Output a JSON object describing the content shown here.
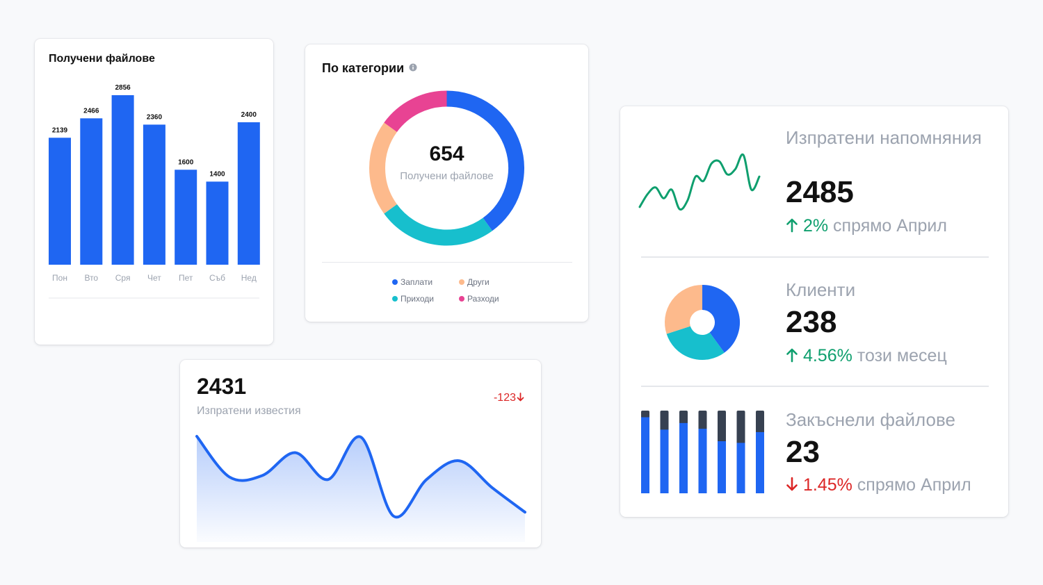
{
  "files_card": {
    "title": "Получени файлове",
    "chart_data": {
      "type": "bar",
      "categories": [
        "Пон",
        "Вто",
        "Сря",
        "Чет",
        "Пет",
        "Съб",
        "Нед"
      ],
      "values": [
        2139,
        2466,
        2856,
        2360,
        1600,
        1400,
        2400
      ],
      "color": "#1f66f2"
    }
  },
  "category_card": {
    "title": "По категории",
    "info_icon": "info-icon",
    "center_value": "654",
    "center_label": "Получени файлове",
    "chart_data": {
      "type": "pie",
      "categories": [
        "Заплати",
        "Приходи",
        "Други",
        "Разходи"
      ],
      "values": [
        40,
        25,
        20,
        15
      ],
      "colors": [
        "#1f66f2",
        "#17bfcd",
        "#fdba8c",
        "#e84393"
      ]
    },
    "legend": [
      {
        "label": "Заплати",
        "color": "#1f66f2"
      },
      {
        "label": "Други",
        "color": "#fdba8c"
      },
      {
        "label": "Приходи",
        "color": "#17bfcd"
      },
      {
        "label": "Разходи",
        "color": "#e84393"
      }
    ]
  },
  "notifications_card": {
    "value": "2431",
    "label": "Изпратени известия",
    "change": "-123",
    "change_icon": "arrow-down-icon",
    "chart_data": {
      "type": "area",
      "x": [
        0,
        1,
        2,
        3,
        4,
        5,
        6,
        7,
        8,
        9,
        10
      ],
      "values": [
        78,
        28,
        30,
        58,
        25,
        77,
        -20,
        25,
        48,
        15,
        -15
      ],
      "color": "#1f66f2"
    }
  },
  "kpi_card": {
    "reminders": {
      "label": "Изпратени напомняния",
      "value": "2485",
      "change_pct": "2%",
      "change_text": "спрямо Април",
      "direction": "up",
      "chart_data": {
        "type": "line",
        "values": [
          12,
          24,
          30,
          20,
          28,
          10,
          18,
          40,
          36,
          52,
          54,
          42,
          47,
          60,
          28,
          40
        ],
        "color": "#0f9f6e"
      }
    },
    "clients": {
      "label": "Клиенти",
      "value": "238",
      "change_pct": "4.56%",
      "change_text": "този месец",
      "direction": "up",
      "chart_data": {
        "type": "pie",
        "values": [
          40,
          30,
          30
        ],
        "colors": [
          "#1f66f2",
          "#17bfcd",
          "#fdba8c"
        ]
      }
    },
    "late_files": {
      "label": "Закъснели файлове",
      "value": "23",
      "change_pct": "1.45%",
      "change_text": "спрямо Април",
      "direction": "down",
      "chart_data": {
        "type": "bar",
        "values": [
          92,
          77,
          85,
          78,
          63,
          61,
          74
        ],
        "max": 100,
        "colors": [
          "#1f66f2",
          "#374151"
        ]
      }
    }
  }
}
